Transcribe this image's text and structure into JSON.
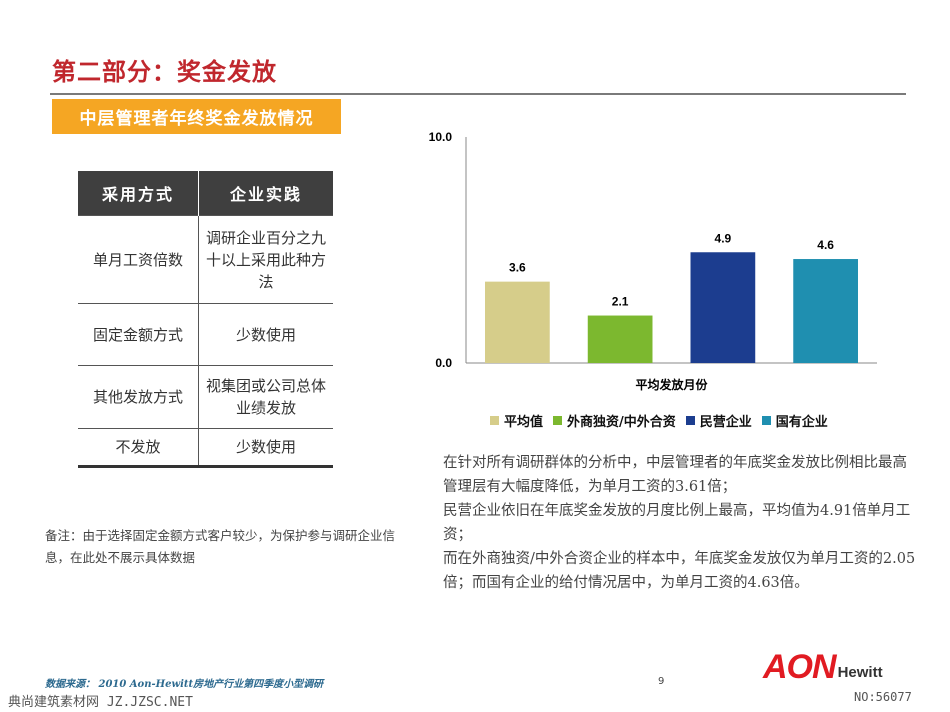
{
  "slide": {
    "title": "第二部分：奖金发放",
    "banner": "中层管理者年终奖金发放情况"
  },
  "table": {
    "headers": [
      "采用方式",
      "企业实践"
    ],
    "rows": [
      {
        "method": "单月工资倍数",
        "practice": "调研企业百分之九十以上采用此种方法"
      },
      {
        "method": "固定金额方式",
        "practice": "少数使用"
      },
      {
        "method": "其他发放方式",
        "practice": "视集团或公司总体业绩发放"
      },
      {
        "method": "不发放",
        "practice": "少数使用"
      }
    ]
  },
  "note": "备注：由于选择固定金额方式客户较少，为保护参与调研企业信息，在此处不展示具体数据",
  "chart_data": {
    "type": "bar",
    "categories": [
      "平均值",
      "外商独资/中外合资",
      "民营企业",
      "国有企业"
    ],
    "values": [
      3.6,
      2.1,
      4.9,
      4.6
    ],
    "value_labels": [
      "3.6",
      "2.1",
      "4.9",
      "4.6"
    ],
    "colors": [
      "#d6cd8a",
      "#7cb82f",
      "#1c3d8f",
      "#1f8fb0"
    ],
    "xlabel": "平均发放月份",
    "ylabel": "",
    "ylim": [
      0,
      10
    ],
    "y_tick_labels": [
      "10.0",
      "0.0"
    ],
    "legend_position": "bottom",
    "grid": false
  },
  "analysis": [
    "在针对所有调研群体的分析中，中层管理者的年底奖金发放比例相比最高管理层有大幅度降低，为单月工资的3.61倍；",
    "民营企业依旧在年底奖金发放的月度比例上最高，平均值为4.91倍单月工资；",
    "而在外商独资/中外合资企业的样本中，年底奖金发放仅为单月工资的2.05倍；而国有企业的给付情况居中，为单月工资的4.63倍。"
  ],
  "footer": {
    "source": "数据来源： 2010 Aon-Hewitt房地产行业第四季度小型调研",
    "page_number": "9",
    "watermark_left": "典尚建筑素材网 JZ.JZSC.NET",
    "watermark_right": "NO:56077",
    "logo_main": "AON",
    "logo_sub": "Hewitt"
  }
}
